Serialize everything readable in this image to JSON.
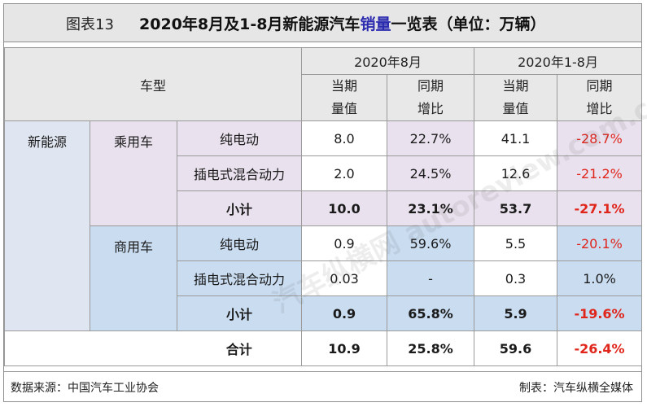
{
  "header": {
    "fig_no": "图表13",
    "title_part1": "2020年8月及1-8月新能源汽车",
    "title_highlight": "销量",
    "title_part2": "一览表（单位：万辆）"
  },
  "columns": {
    "vehicle_type": "车型",
    "period_aug": "2020年8月",
    "period_ytd": "2020年1-8月",
    "cur_line1": "当期",
    "cur_line2": "量值",
    "yoy_line1": "同期",
    "yoy_line2": "增比"
  },
  "rows": {
    "nev": "新能源",
    "passenger": "乘用车",
    "commercial": "商用车",
    "bev": "纯电动",
    "phev": "插电式混合动力",
    "subtotal": "小计",
    "total": "合计"
  },
  "data": {
    "p_bev": [
      "8.0",
      "22.7%",
      "41.1",
      "-28.7%"
    ],
    "p_phev": [
      "2.0",
      "24.5%",
      "12.6",
      "-21.2%"
    ],
    "p_sub": [
      "10.0",
      "23.1%",
      "53.7",
      "-27.1%"
    ],
    "c_bev": [
      "0.9",
      "59.6%",
      "5.5",
      "-20.1%"
    ],
    "c_phev": [
      "0.03",
      "-",
      "0.3",
      "1.0%"
    ],
    "c_sub": [
      "0.9",
      "65.8%",
      "5.9",
      "-19.6%"
    ],
    "total": [
      "10.9",
      "25.8%",
      "59.6",
      "-26.4%"
    ]
  },
  "footer": {
    "source": "数据来源：中国汽车工业协会",
    "maker": "制表：汽车纵横全媒体"
  },
  "watermark": "汽车纵横网 autoreview.com.cn",
  "colors": {
    "header_bg": "#e8e8e8",
    "passenger_bg": "#e9e1ee",
    "commercial_bg": "#c9dcf0",
    "negative_text": "#e0251b",
    "title_highlight": "#2b2bb0"
  }
}
